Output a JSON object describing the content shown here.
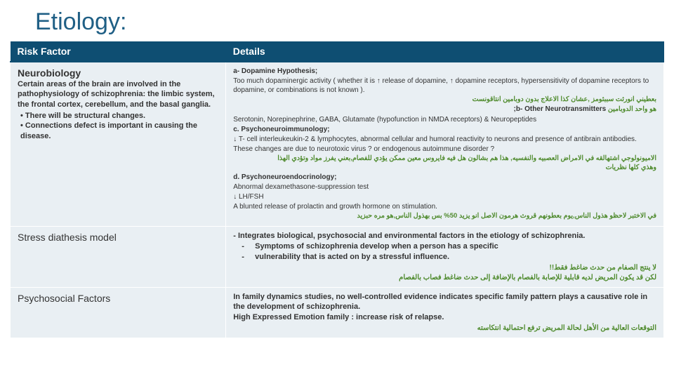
{
  "colors": {
    "title": "#1f5f85",
    "headerBg": "#0e4e72",
    "cellBg": "#e9eff3",
    "green": "#4e8a2c"
  },
  "title": "Etiology:",
  "headers": {
    "col1": "Risk Factor",
    "col2": "Details"
  },
  "row1": {
    "rfHead": "Neurobiology",
    "rfBody": "Certain areas of the brain are involved in the pathophysiology of schizophrenia: the limbic system, the frontal cortex, cerebellum, and the basal ganglia.",
    "rfBul1": "There will be structural changes.",
    "rfBul2": "Connections defect is important in causing the disease.",
    "a1": "a- Dopamine Hypothesis;",
    "a2": "Too much dopaminergic activity ( whether it is ↑ release of dopamine, ↑ dopamine receptors, hypersensitivity of dopamine receptors to dopamine, or combinations is not known ).",
    "a3": "بعطيني انورثت سببثومز ,عشان كذا الاعلاج بدون دوبامين انتاقونست",
    "bPre": "هو واحد الدوبامين ",
    "bLabel": "b- Other Neurotransmitters;",
    "b2": "Serotonin, Norepinephrine, GABA, Glutamate (hypofunction in NMDA receptors) & Neuropeptides",
    "cLabel": "c. Psychoneuroimmunology;",
    "c2": "↓ T- cell interleukeukin-2 & lymphocytes, abnormal cellular and humoral reactivity to neurons and presence of antibrain antibodies.",
    "c3": "These changes are due to neurotoxic virus ? or endogenous autoimmune disorder ?",
    "c4": "الاميونولوجي اشتهالقه في الامراض العصبيه والنفسيه, هذا هم بشالون هل فيه فايروس معين ممكن يؤدي للفصام,بعني يفرز مواد وتؤدي الهذا",
    "c5": "وهذي كلها نظريات",
    "dLabel": "d. Psychoneuroendocrinology;",
    "d2": "Abnormal dexamethasone-suppression test",
    "d3": "↓ LH/FSH",
    "d4": "A blunted release of prolactin and growth hormone on stimulation.",
    "d5": "في الاختبر لاحظو هذول الناس,يوم بعطونهم قروث هرمون الاصل انو يزيد 50% بس بهذول الناس,هو مره حبزيد"
  },
  "row2": {
    "rf": "Stress diathesis model",
    "p1": "- Integrates biological, psychosocial and environmental factors in the etiology of schizophrenia.",
    "p2": "Symptoms of schizophrenia develop when a person has  a specific",
    "p3": "vulnerability that is acted on by  a stressful influence.",
    "g1": "لا ينتج الصفام من حدث ضاغط فقط!!",
    "g2": "لكن قد يكون المريض لديه قابلية للإصابة بالفصام بالإضافة إلى حدث ضاغط فصاب بالفصام"
  },
  "row3": {
    "rf": "Psychosocial Factors",
    "p1": "In family dynamics studies, no well-controlled evidence indicates specific family pattern plays a causative role in the development of schizophrenia.",
    "p2": "High Expressed Emotion  family : increase risk of relapse.",
    "g1": "التوقعات العالية من الأهل لحالة المريض ترفع احتمالية انتكاسته"
  }
}
